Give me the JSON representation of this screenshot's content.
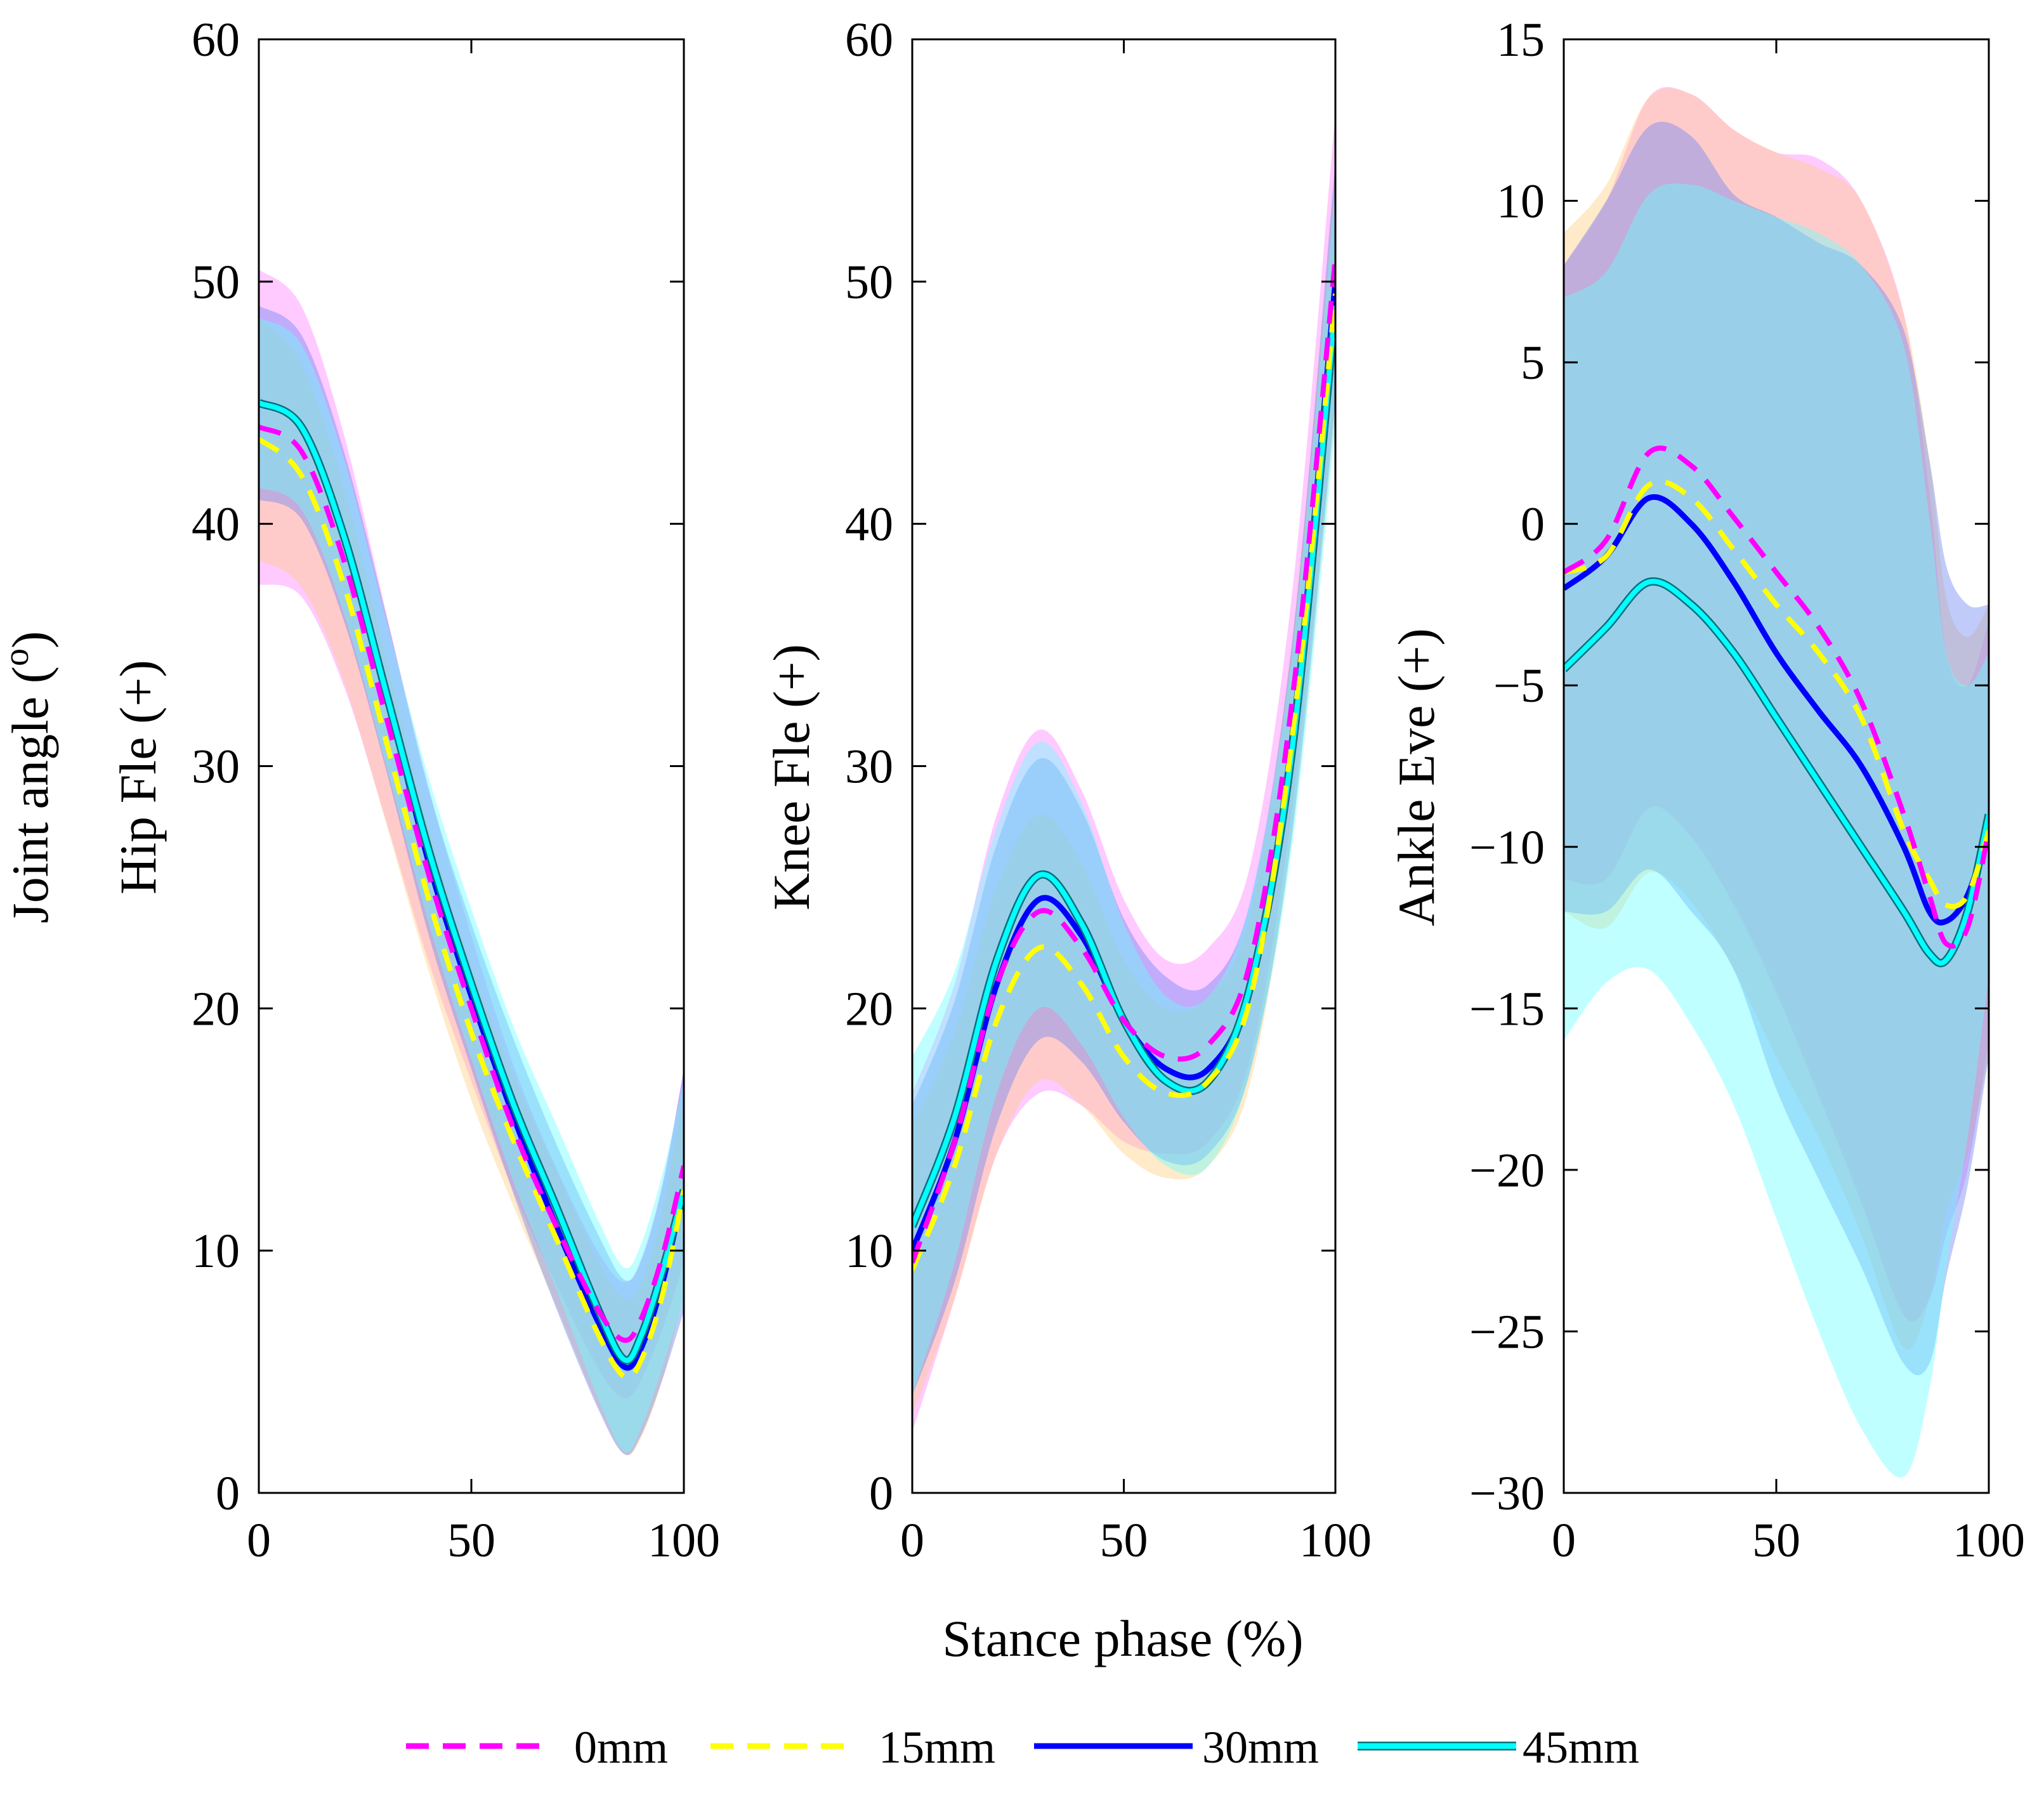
{
  "figure": {
    "shared_xlabel": "Stance phase (%)",
    "legend": [
      {
        "label": "0mm",
        "color": "#ff00ff",
        "dash": "dashed"
      },
      {
        "label": "15mm",
        "color": "#ffff00",
        "dash": "dashed"
      },
      {
        "label": "30mm",
        "color": "#0000ff",
        "dash": "solid"
      },
      {
        "label": "45mm",
        "color": "#00ffff",
        "dash": "solid"
      }
    ],
    "band_colors": [
      "#ff80ff",
      "#ffcc80",
      "#6a82f4",
      "#66ffff"
    ]
  },
  "chart_data": [
    {
      "type": "line",
      "ylabel_lines": [
        "Joint angle (",
        "o",
        ")",
        "Hip Fle (+)"
      ],
      "xlim": [
        0,
        100
      ],
      "ylim": [
        0,
        60
      ],
      "xticks": [
        0,
        50,
        100
      ],
      "yticks": [
        0,
        10,
        20,
        30,
        40,
        50,
        60
      ],
      "x": [
        0,
        10,
        20,
        30,
        40,
        50,
        60,
        70,
        80,
        86,
        90,
        95,
        100
      ],
      "series": [
        {
          "name": "0mm",
          "values": [
            44,
            43,
            38.5,
            32,
            25.5,
            20,
            15,
            11,
            7.5,
            6.3,
            7.2,
            9.8,
            13.5
          ],
          "band": [
            6.5,
            6.0,
            5.2,
            4.3,
            3.6,
            3.0,
            2.6,
            2.4,
            2.4,
            2.4,
            2.5,
            3.0,
            4.0
          ]
        },
        {
          "name": "15mm",
          "values": [
            43.5,
            42,
            37.5,
            31,
            24.5,
            19,
            14.5,
            10.5,
            6.5,
            4.8,
            5.5,
            8.2,
            12.5
          ],
          "band": [
            5.0,
            4.6,
            4.0,
            3.4,
            3.0,
            2.8,
            2.7,
            2.8,
            3.0,
            3.2,
            3.2,
            3.5,
            4.3
          ]
        },
        {
          "name": "30mm",
          "values": [
            45,
            44,
            39.5,
            33,
            26,
            20.5,
            15.5,
            11,
            7,
            5.2,
            6,
            8.7,
            12.5
          ],
          "band": [
            4.0,
            3.8,
            3.5,
            3.2,
            3.0,
            3.0,
            3.2,
            3.4,
            3.6,
            3.6,
            3.6,
            4.0,
            5.0
          ]
        },
        {
          "name": "45mm",
          "values": [
            45,
            44,
            39.5,
            33,
            26.5,
            21,
            16,
            11.8,
            7.5,
            5.5,
            6.5,
            9.2,
            12.5
          ],
          "band": [
            3.5,
            3.4,
            3.2,
            3.0,
            3.0,
            3.1,
            3.2,
            3.4,
            3.7,
            3.8,
            3.8,
            4.0,
            4.5
          ]
        }
      ]
    },
    {
      "type": "line",
      "ylabel_lines": [
        "Knee Fle (+)"
      ],
      "xlim": [
        0,
        100
      ],
      "ylim": [
        0,
        60
      ],
      "xticks": [
        0,
        50,
        100
      ],
      "yticks": [
        0,
        10,
        20,
        30,
        40,
        50,
        60
      ],
      "x": [
        0,
        10,
        20,
        30,
        40,
        50,
        60,
        70,
        80,
        90,
        100
      ],
      "series": [
        {
          "name": "0mm",
          "values": [
            9.5,
            14.5,
            21,
            24,
            22.5,
            19.5,
            18,
            18.5,
            22,
            33,
            51
          ],
          "band": [
            7.0,
            6.5,
            7.0,
            7.5,
            6.5,
            5.0,
            4.0,
            4.0,
            4.0,
            4.5,
            6.0
          ]
        },
        {
          "name": "15mm",
          "values": [
            9.2,
            13.5,
            19.5,
            22.5,
            21,
            18,
            16.5,
            17,
            20.5,
            31.5,
            49.5
          ],
          "band": [
            6.0,
            5.5,
            5.5,
            5.5,
            5.0,
            4.0,
            3.5,
            3.5,
            3.5,
            4.0,
            5.0
          ]
        },
        {
          "name": "30mm",
          "values": [
            10,
            14.5,
            21,
            24.5,
            23,
            19.5,
            17.5,
            17.5,
            21,
            31.5,
            50
          ],
          "band": [
            6.0,
            5.8,
            5.8,
            5.8,
            5.2,
            4.2,
            3.8,
            3.5,
            3.5,
            4.0,
            5.0
          ]
        },
        {
          "name": "45mm",
          "values": [
            11,
            15.5,
            22,
            25.5,
            23.5,
            19.5,
            17,
            17,
            21,
            31,
            49
          ],
          "band": [
            7.0,
            6.0,
            5.5,
            5.5,
            5.0,
            4.0,
            3.5,
            3.5,
            3.5,
            4.0,
            5.0
          ]
        }
      ]
    },
    {
      "type": "line",
      "ylabel_lines": [
        "Ankle Eve (+)"
      ],
      "xlim": [
        0,
        100
      ],
      "ylim": [
        -30,
        15
      ],
      "xticks": [
        0,
        50,
        100
      ],
      "yticks": [
        -30,
        -25,
        -20,
        -15,
        -10,
        -5,
        0,
        5,
        10,
        15
      ],
      "x": [
        0,
        10,
        20,
        30,
        40,
        50,
        60,
        70,
        80,
        86,
        90,
        95,
        100
      ],
      "series": [
        {
          "name": "0mm",
          "values": [
            -1.5,
            -0.5,
            2.2,
            1.8,
            0.2,
            -1.5,
            -3.2,
            -5.5,
            -9,
            -11.5,
            -13,
            -12.5,
            -9.5
          ],
          "band": [
            9.5,
            10.5,
            11.0,
            11.5,
            12.0,
            13.0,
            14.5,
            15.5,
            15.5,
            12.5,
            9.0,
            7.5,
            6.5
          ]
        },
        {
          "name": "15mm",
          "values": [
            -1.5,
            -1,
            1.2,
            0.8,
            -0.8,
            -2.5,
            -4,
            -6,
            -9.5,
            -11,
            -11.8,
            -11.5,
            -9.5
          ],
          "band": [
            10.5,
            11.5,
            12.0,
            12.5,
            13.0,
            14.0,
            15.0,
            16.0,
            16.0,
            13.0,
            9.5,
            8.0,
            7.0
          ]
        },
        {
          "name": "30mm",
          "values": [
            -2,
            -1,
            0.8,
            0,
            -1.8,
            -4,
            -5.8,
            -7.5,
            -10,
            -12,
            -12.3,
            -11.5,
            -9.5
          ],
          "band": [
            10.0,
            11.0,
            11.5,
            12.0,
            12.0,
            13.5,
            14.5,
            15.5,
            16.0,
            14.0,
            11.0,
            9.0,
            7.0
          ]
        },
        {
          "name": "45mm",
          "values": [
            -4.5,
            -3.2,
            -1.8,
            -2.5,
            -4,
            -6,
            -8,
            -10,
            -12,
            -13.3,
            -13.5,
            -12,
            -9
          ],
          "band": [
            11.5,
            11.0,
            12.0,
            13.0,
            14.0,
            15.5,
            17.0,
            18.0,
            17.5,
            13.5,
            9.5,
            7.0,
            5.0
          ]
        }
      ]
    }
  ]
}
